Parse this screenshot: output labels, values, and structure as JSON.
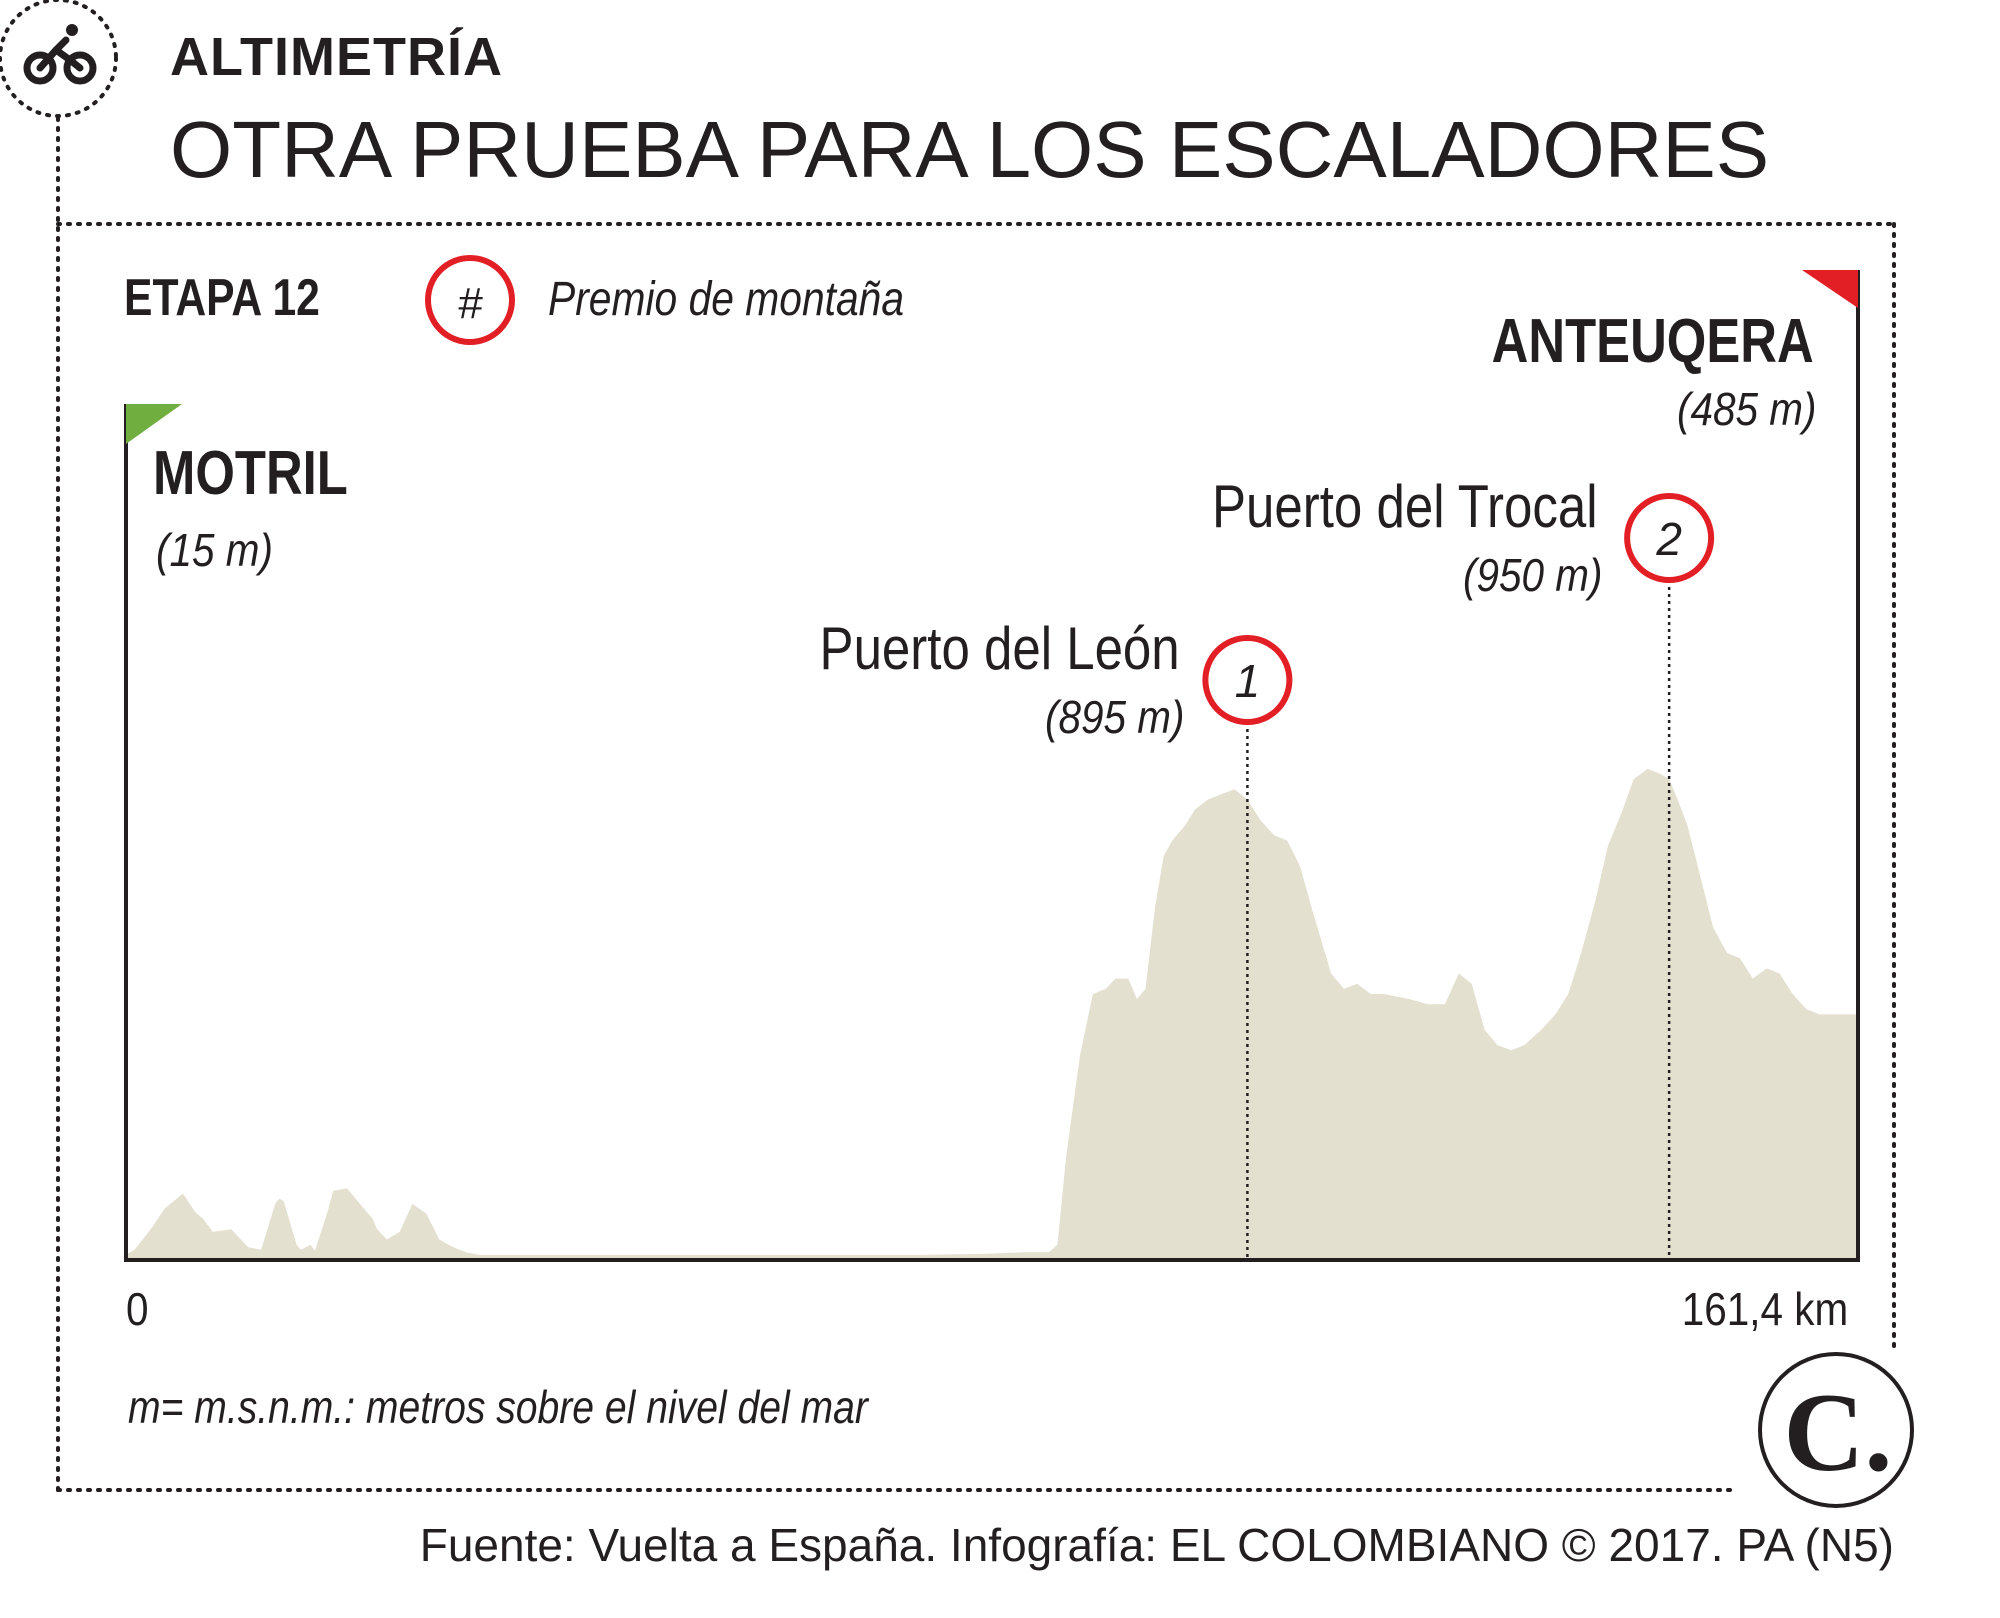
{
  "header": {
    "kicker": "ALTIMETRÍA",
    "headline": "OTRA PRUEBA PARA LOS ESCALADORES",
    "icon": "cyclist-icon"
  },
  "chart_data": {
    "type": "area",
    "stage_label": "ETAPA 12",
    "legend": {
      "marker_symbol": "#",
      "text": "Premio  de montaña"
    },
    "start": {
      "name": "MOTRIL",
      "altitude_label": "(15 m)",
      "flag_color": "#6fae3f"
    },
    "finish": {
      "name": "ANTEUQERA",
      "altitude_label": "(485 m)",
      "flag_color": "#e31f26"
    },
    "mountain_passes": [
      {
        "number": "1",
        "name": "Puerto del León",
        "altitude_label": "(895 m)",
        "km": 104.5,
        "altitude": 895
      },
      {
        "number": "2",
        "name": "Puerto del Trocal",
        "altitude_label": "(950 m)",
        "km": 143.8,
        "altitude": 950
      }
    ],
    "x_axis": {
      "start_label": "0",
      "end_label": "161,4 km",
      "range": [
        0,
        161.4
      ]
    },
    "y_range": [
      0,
      1000
    ],
    "profile_color": "#e3e0cf",
    "profile": {
      "km": [
        0,
        0.8,
        2.3,
        3.6,
        5.3,
        6.4,
        7.2,
        8.1,
        9.8,
        11.4,
        12.6,
        13.9,
        14.3,
        14.7,
        15.9,
        16.3,
        17.2,
        17.6,
        18.8,
        19.3,
        20.6,
        21.8,
        23,
        23.4,
        24.3,
        25.5,
        26.7,
        28,
        29.2,
        30.5,
        31.7,
        32.9,
        33.8,
        35.1,
        36.3,
        37.5,
        38.8,
        40,
        40.4,
        41.7,
        42.9,
        45.4,
        49.1,
        55.3,
        61.4,
        67.6,
        73.7,
        79.9,
        83.6,
        86,
        86.8,
        87.6,
        88.9,
        90.1,
        91.3,
        92.2,
        93.4,
        94.2,
        95,
        95.9,
        96.7,
        97.5,
        98.7,
        99.6,
        100.8,
        102,
        103.3,
        104.5,
        105.7,
        107,
        108.2,
        109.4,
        110.6,
        112.3,
        113.5,
        114.7,
        116,
        117.2,
        119.6,
        121.3,
        122.9,
        124.2,
        125.4,
        126.6,
        127.8,
        129.1,
        130.3,
        131.9,
        133.2,
        134.4,
        135.6,
        136.9,
        138.1,
        139.3,
        140.5,
        141.8,
        143,
        143.8,
        144.6,
        145.5,
        146.7,
        147.9,
        149.2,
        150.4,
        151.6,
        152.9,
        154.1,
        155.3,
        156.6,
        157.8,
        159,
        160.3,
        161.4
      ],
      "altitude": [
        10,
        20,
        60,
        100,
        130,
        95,
        80,
        55,
        60,
        25,
        20,
        110,
        120,
        115,
        30,
        20,
        30,
        18,
        95,
        135,
        140,
        110,
        80,
        60,
        40,
        55,
        110,
        90,
        40,
        25,
        15,
        10,
        10,
        10,
        10,
        10,
        10,
        10,
        10,
        10,
        10,
        10,
        10,
        10,
        10,
        10,
        10,
        12,
        15,
        15,
        30,
        200,
        400,
        520,
        530,
        550,
        550,
        510,
        530,
        690,
        790,
        820,
        850,
        880,
        900,
        910,
        920,
        900,
        860,
        830,
        820,
        770,
        680,
        560,
        530,
        540,
        520,
        520,
        510,
        500,
        500,
        560,
        540,
        450,
        420,
        410,
        420,
        450,
        480,
        520,
        600,
        700,
        810,
        870,
        940,
        960,
        950,
        940,
        900,
        850,
        750,
        650,
        600,
        590,
        550,
        570,
        560,
        520,
        490,
        480,
        480,
        480,
        480
      ]
    }
  },
  "footnote": "m= m.s.n.m.: metros sobre el nivel del mar",
  "source": "Fuente: Vuelta a España. Infografía: EL COLOMBIANO © 2017. PA (N5)",
  "logo": {
    "letter": "C."
  }
}
